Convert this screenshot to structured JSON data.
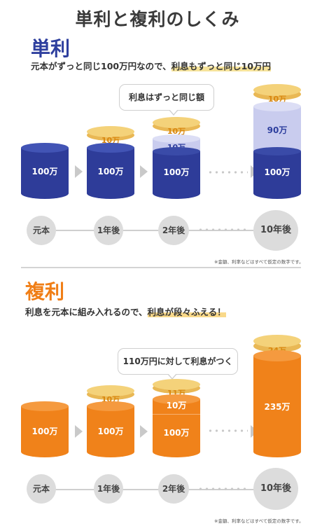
{
  "title": "単利と複利のしくみ",
  "simple": {
    "heading": "単利",
    "desc_plain": "元本がずっと同じ100万円なので、",
    "desc_highlight": "利息もずっと同じ10万円",
    "bubble": "利息はずっと同じ額",
    "principal_label": "100万",
    "interest_label": "10万",
    "accumulated_label": "90万",
    "steps": [
      "元本",
      "1年後",
      "2年後",
      "10年後"
    ],
    "note": "※金額、利率などはすべて仮定の数字です。",
    "colors": {
      "accent": "#2e3f9e",
      "cylinder": "#2e3c99",
      "cylinder_top": "#4254b5",
      "accumulated": "#c9ccee",
      "coin": "#f4d27a",
      "coin_text": "#d9870e"
    }
  },
  "compound": {
    "heading": "複利",
    "desc_plain": "利息を元本に組み入れるので、",
    "desc_highlight": "利息が段々ふえる！",
    "bubble": "110万円に対して利息がつく",
    "principal_label": "100万",
    "interest_y1": "10万",
    "interest_y2": "11万",
    "reinvested_label": "10万",
    "total_10y": "235万",
    "interest_10y": "24万",
    "steps": [
      "元本",
      "1年後",
      "2年後",
      "10年後"
    ],
    "note": "※金額、利率などはすべて仮定の数字です。",
    "colors": {
      "accent": "#f07e16",
      "cylinder": "#f0821a",
      "cylinder_top": "#f59a3f",
      "coin": "#f4d27a",
      "coin_text": "#d9870e"
    }
  }
}
